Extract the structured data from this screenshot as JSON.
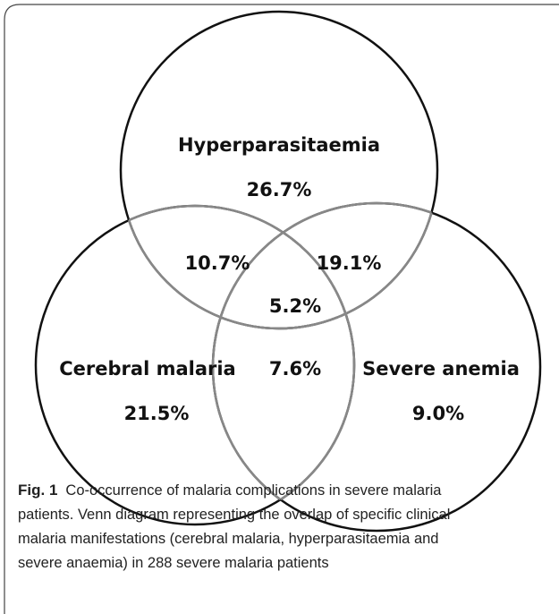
{
  "venn": {
    "sets": [
      {
        "label": "Hyperparasitaemia",
        "value": "26.7%"
      },
      {
        "label": "Cerebral malaria",
        "value": "21.5%"
      },
      {
        "label": "Severe anemia",
        "value": "9.0%"
      }
    ],
    "overlaps": {
      "hyper_cerebral": "10.7%",
      "hyper_severe": "19.1%",
      "all_three": "5.2%",
      "cerebral_severe": "7.6%"
    }
  },
  "caption": {
    "label": "Fig. 1",
    "lines": [
      "Co-occurrence of malaria complications in severe malaria",
      "patients. Venn diagram representing the overlap of specific clinical",
      "malaria manifestations (cerebral malaria, hyperparasitaemia and",
      "severe anaemia) in 288 severe malaria patients"
    ]
  }
}
